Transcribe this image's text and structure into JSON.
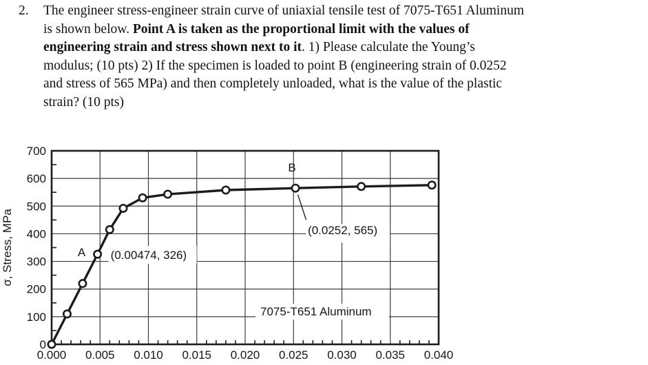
{
  "problem": {
    "number": "2.",
    "lines": [
      [
        {
          "t": "The engineer stress-engineer strain curve of uniaxial tensile test of 7075-T651 Aluminum",
          "b": false
        }
      ],
      [
        {
          "t": "is shown below. ",
          "b": false
        },
        {
          "t": "Point A is taken as the proportional limit with the values of",
          "b": true
        }
      ],
      [
        {
          "t": "engineering strain and stress shown next to it",
          "b": true
        },
        {
          "t": ". 1) Please calculate the Young’s",
          "b": false
        }
      ],
      [
        {
          "t": "modulus; (10 pts) 2) If the specimen is loaded to point B (engineering strain of 0.0252",
          "b": false
        }
      ],
      [
        {
          "t": "and stress of 565 MPa) and then completely unloaded, what is the value of the plastic",
          "b": false
        }
      ],
      [
        {
          "t": "strain? (10 pts)",
          "b": false
        }
      ]
    ]
  },
  "chart_data": {
    "type": "line",
    "title": "",
    "xlabel": "",
    "ylabel": "σ, Stress, MPa",
    "xlim": [
      0,
      0.04
    ],
    "ylim": [
      0,
      700
    ],
    "x_major": 0.005,
    "x_minor": 0.001,
    "y_major": 100,
    "y_minor": 50,
    "grid": true,
    "line_color": "#1c1c1c",
    "x_tick_labels": [
      "0.000",
      "0.005",
      "0.010",
      "0.015",
      "0.020",
      "0.025",
      "0.030",
      "0.035",
      "0.040"
    ],
    "y_tick_labels": [
      "0",
      "100",
      "200",
      "300",
      "400",
      "500",
      "600",
      "700"
    ],
    "series": [
      {
        "name": "7075-T651 Aluminum",
        "marker": "open-circle",
        "x": [
          0,
          0.0016,
          0.0032,
          0.00474,
          0.006,
          0.0074,
          0.0094,
          0.012,
          0.018,
          0.0252,
          0.032,
          0.0393
        ],
        "y": [
          0,
          110,
          220,
          326,
          415,
          492,
          530,
          543,
          558,
          565,
          571,
          576
        ]
      }
    ],
    "annotations": {
      "point_a": {
        "label": "A",
        "x": 0.00474,
        "y": 326,
        "coords_text": "(0.00474, 326)"
      },
      "point_b": {
        "label": "B",
        "x": 0.0252,
        "y": 565,
        "coords_text": "(0.0252, 565)"
      },
      "series_label": "7075-T651 Aluminum"
    }
  }
}
